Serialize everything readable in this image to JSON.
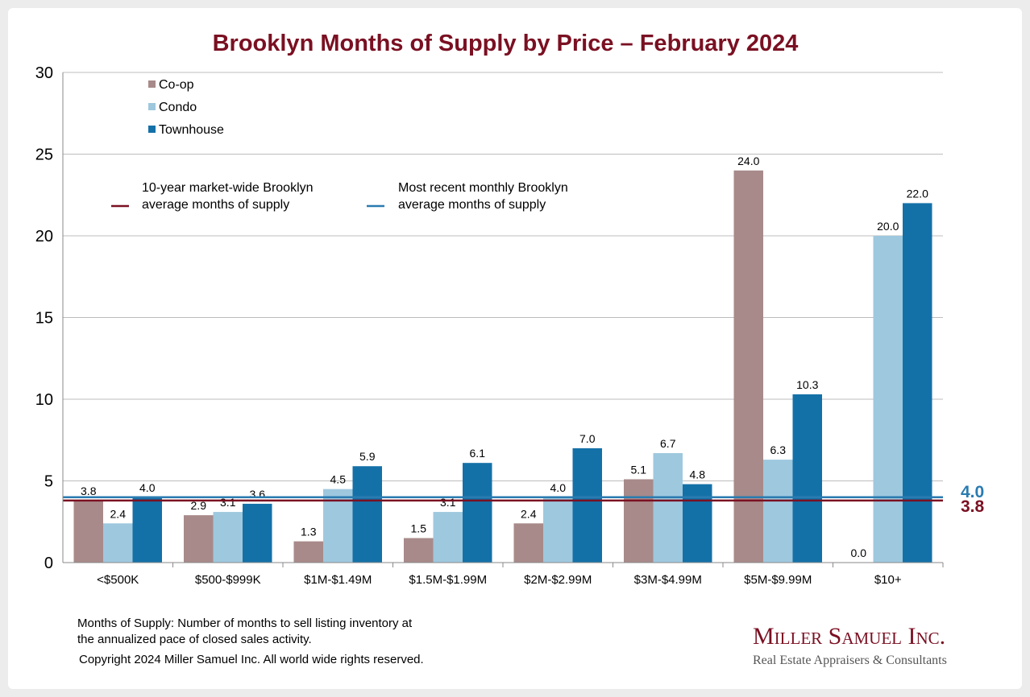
{
  "chart_data": {
    "type": "bar",
    "title": "Brooklyn Months of Supply by Price – February 2024",
    "categories": [
      "<$500K",
      "$500-$999K",
      "$1M-$1.49M",
      "$1.5M-$1.99M",
      "$2M-$2.99M",
      "$3M-$4.99M",
      "$5M-$9.99M",
      "$10+"
    ],
    "series": [
      {
        "name": "Co-op",
        "color": "#a88a8a",
        "values": [
          3.8,
          2.9,
          1.3,
          1.5,
          2.4,
          5.1,
          24.0,
          0.0
        ],
        "labels": [
          "3.8",
          "2.9",
          "1.3",
          "1.5",
          "2.4",
          "5.1",
          "24.0",
          "0.0"
        ]
      },
      {
        "name": "Condo",
        "color": "#9ec8de",
        "values": [
          2.4,
          3.1,
          4.5,
          3.1,
          4.0,
          6.7,
          6.3,
          20.0
        ],
        "labels": [
          "2.4",
          "3.1",
          "4.5",
          "3.1",
          "4.0",
          "6.7",
          "6.3",
          "20.0"
        ]
      },
      {
        "name": "Townhouse",
        "color": "#1471a8",
        "values": [
          4.0,
          3.6,
          5.9,
          6.1,
          7.0,
          4.8,
          10.3,
          22.0
        ],
        "labels": [
          "4.0",
          "3.6",
          "5.9",
          "6.1",
          "7.0",
          "4.8",
          "10.3",
          "22.0"
        ]
      }
    ],
    "ylim": [
      0,
      30
    ],
    "yticks": [
      0,
      5,
      10,
      15,
      20,
      25,
      30
    ],
    "ytick_labels": [
      "0",
      "5",
      "10",
      "15",
      "20",
      "25",
      "30"
    ],
    "grid": true,
    "reference_lines": [
      {
        "name": "10-year market-wide Brooklyn average months of supply",
        "legend_lines": [
          "10-year market-wide Brooklyn",
          "average months of supply"
        ],
        "value": 3.8,
        "label": "3.8",
        "color": "#7a1022"
      },
      {
        "name": "Most recent monthly Brooklyn average months of supply",
        "legend_lines": [
          "Most recent monthly Brooklyn",
          "average months of supply"
        ],
        "value": 4.0,
        "label": "4.0",
        "color": "#2a7bb0"
      }
    ],
    "legend_position": "top-left"
  },
  "footnote": {
    "line1": "Months of Supply: Number of months to sell listing inventory at",
    "line2": "the annualized pace of closed sales activity.",
    "copyright": "Copyright 2024 Miller Samuel Inc.  All world wide rights reserved."
  },
  "brand": {
    "name": "Miller Samuel Inc.",
    "tagline": "Real Estate Appraisers & Consultants"
  }
}
